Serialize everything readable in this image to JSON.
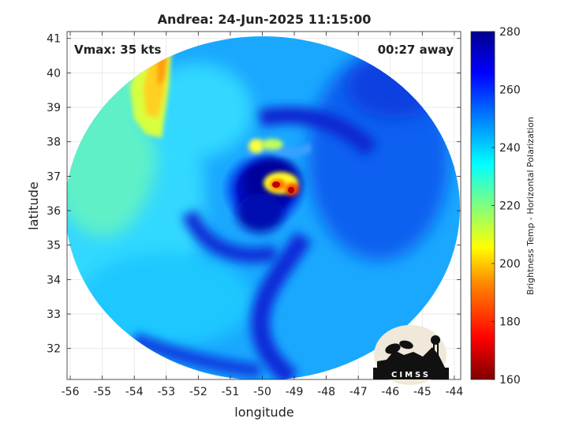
{
  "chart_data": {
    "type": "heatmap",
    "title": "Andrea: 24-Jun-2025 11:15:00",
    "xlabel": "longitude",
    "ylabel": "latitude",
    "xlim": [
      -56.1,
      -43.8
    ],
    "ylim": [
      31.1,
      41.2
    ],
    "xticks": [
      "-56",
      "-55",
      "-54",
      "-53",
      "-52",
      "-51",
      "-50",
      "-49",
      "-48",
      "-47",
      "-46",
      "-45",
      "-44"
    ],
    "xtick_values": [
      -56,
      -55,
      -54,
      -53,
      -52,
      -51,
      -50,
      -49,
      -48,
      -47,
      -46,
      -45,
      -44
    ],
    "yticks": [
      "41",
      "40",
      "39",
      "38",
      "37",
      "36",
      "35",
      "34",
      "33",
      "32"
    ],
    "ytick_values": [
      41,
      40,
      39,
      38,
      37,
      36,
      35,
      34,
      33,
      32
    ],
    "grid": true,
    "annotations": {
      "vmax": "Vmax: 35 kts",
      "away": "00:27 away"
    },
    "colorbar": {
      "label": "Brightness Temp - Horizontal Polarization",
      "range": [
        160,
        280
      ],
      "ticks": [
        "280",
        "260",
        "240",
        "220",
        "200",
        "180",
        "160"
      ],
      "tick_values": [
        280,
        260,
        240,
        220,
        200,
        180,
        160
      ],
      "colormap": "jet",
      "colors": [
        "#7f0000",
        "#ff0000",
        "#ff8c00",
        "#ffff00",
        "#7fff7f",
        "#00ffff",
        "#0080ff",
        "#0000ff",
        "#00008f"
      ]
    },
    "swath_center": {
      "lon": -50.0,
      "lat": 36.2
    },
    "features": [
      {
        "name": "storm center cold core",
        "lon": -49.3,
        "lat": 36.6,
        "value": 175
      },
      {
        "name": "inner eyewall cold spot",
        "lon": -49.6,
        "lat": 36.7,
        "value": 180
      },
      {
        "name": "northern convective band",
        "lon": -50.2,
        "lat": 37.9,
        "value": 212
      },
      {
        "name": "northwest warm land edge",
        "lon": -53.3,
        "lat": 39.5,
        "value": 202
      }
    ]
  },
  "logo": {
    "text": "CIMSS"
  }
}
